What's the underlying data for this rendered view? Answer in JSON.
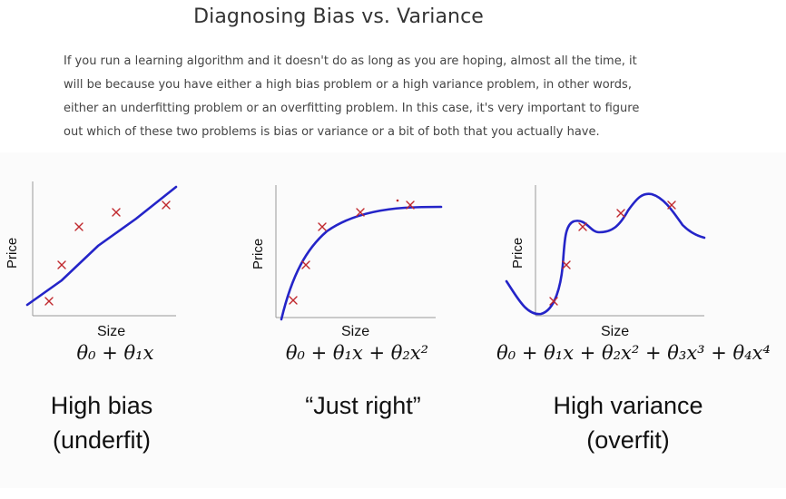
{
  "title": "Diagnosing Bias vs. Variance",
  "intro_lines": [
    "If you run a learning algorithm and it doesn't do as long as you are hoping, almost all the time, it",
    "will be because you have either a high bias problem or a high variance problem, in other words,",
    "either an underfitting problem or an overfitting problem. In this case, it's very important to figure",
    "out which of these two problems is bias or variance or a bit of both that you actually have."
  ],
  "panels": [
    {
      "ylabel": "Price",
      "xlabel": "Size",
      "formula": "θ₀ + θ₁x",
      "caption_line1": "High bias",
      "caption_line2": "(underfit)"
    },
    {
      "ylabel": "Price",
      "xlabel": "Size",
      "formula": "θ₀ + θ₁x + θ₂x²",
      "caption_line1": "“Just right”",
      "caption_line2": ""
    },
    {
      "ylabel": "Price",
      "xlabel": "Size",
      "formula": "θ₀ + θ₁x + θ₂x² + θ₃x³ + θ₄x⁴",
      "caption_line1": "High variance",
      "caption_line2": "(overfit)"
    }
  ],
  "colors": {
    "curve": "#2424c8",
    "marker": "#c0282d",
    "axis": "#9a9a9a"
  }
}
